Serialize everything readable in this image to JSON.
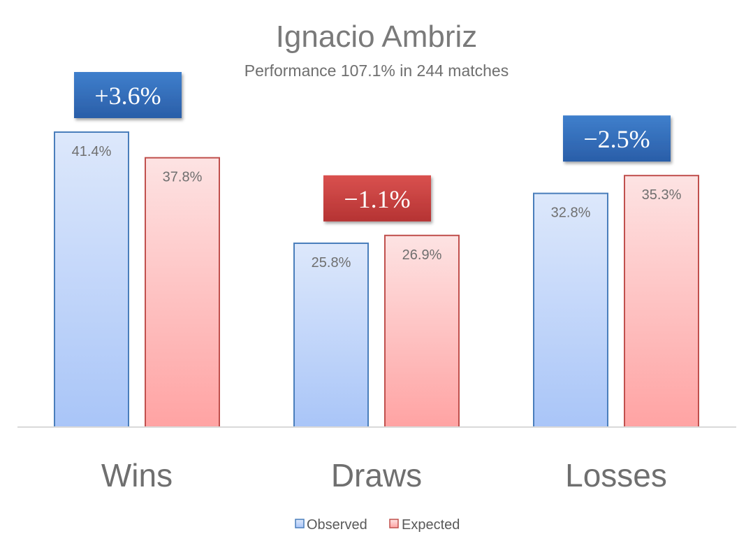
{
  "chart_data": {
    "type": "bar",
    "title": "Ignacio Ambriz",
    "subtitle": "Performance 107.1% in 244 matches",
    "categories": [
      "Wins",
      "Draws",
      "Losses"
    ],
    "series": [
      {
        "name": "Observed",
        "values": [
          41.4,
          25.8,
          32.8
        ],
        "labels": [
          "41.4%",
          "25.8%",
          "32.8%"
        ]
      },
      {
        "name": "Expected",
        "values": [
          37.8,
          26.9,
          35.3
        ],
        "labels": [
          "37.8%",
          "26.9%",
          "35.3%"
        ]
      }
    ],
    "differences": [
      {
        "label": "+3.6%",
        "value": 3.6
      },
      {
        "label": "−1.1%",
        "value": -1.1
      },
      {
        "label": "−2.5%",
        "value": -2.5
      }
    ],
    "ylim": [
      0,
      41.4
    ],
    "grid": false,
    "legend_position": "bottom",
    "colors": {
      "observed_fill_top": "#dde8fb",
      "observed_fill_bottom": "#a9c5f8",
      "observed_border": "#4a7ebb",
      "expected_fill_top": "#fde3e3",
      "expected_fill_bottom": "#ffa3a3",
      "expected_border": "#c0504d",
      "badge_positive": "#2e6bb8",
      "badge_negative": "#c63a3a"
    }
  }
}
